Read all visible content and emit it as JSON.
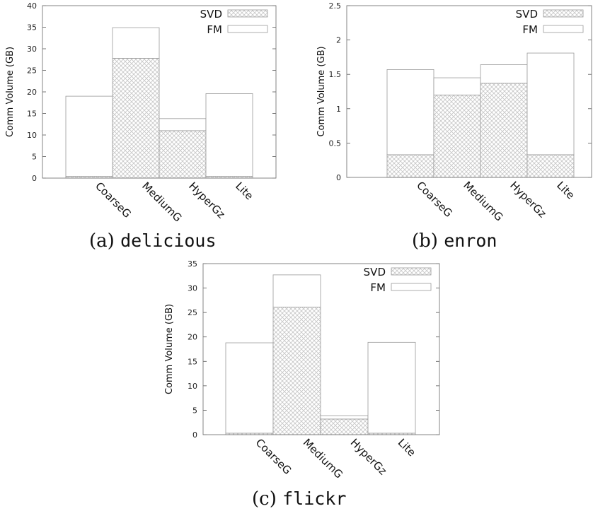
{
  "chart_data": [
    {
      "type": "bar",
      "stacked": true,
      "ylabel": "Comm Volume (GB)",
      "ylim": [
        0,
        40
      ],
      "yticks": [
        0,
        5,
        10,
        15,
        20,
        25,
        30,
        35,
        40
      ],
      "categories": [
        "CoarseG",
        "MediumG",
        "HyperGz",
        "Lite"
      ],
      "series": [
        {
          "name": "SVD",
          "values": [
            0.4,
            27.8,
            11.0,
            0.4
          ]
        },
        {
          "name": "FM",
          "values": [
            18.6,
            7.1,
            2.8,
            19.2
          ]
        }
      ],
      "legend": "top-right",
      "grid": false,
      "caption": {
        "letter": "(a)",
        "dataset": "delicious"
      }
    },
    {
      "type": "bar",
      "stacked": true,
      "ylabel": "Comm Volume (GB)",
      "ylim": [
        0,
        2.5
      ],
      "yticks": [
        0,
        0.5,
        1,
        1.5,
        2,
        2.5
      ],
      "categories": [
        "CoarseG",
        "MediumG",
        "HyperGz",
        "Lite"
      ],
      "series": [
        {
          "name": "SVD",
          "values": [
            0.33,
            1.2,
            1.37,
            0.33
          ]
        },
        {
          "name": "FM",
          "values": [
            1.24,
            0.25,
            0.27,
            1.48
          ]
        }
      ],
      "legend": "top-right",
      "grid": false,
      "caption": {
        "letter": "(b)",
        "dataset": "enron"
      }
    },
    {
      "type": "bar",
      "stacked": true,
      "ylabel": "Comm Volume (GB)",
      "ylim": [
        0,
        35
      ],
      "yticks": [
        0,
        5,
        10,
        15,
        20,
        25,
        30,
        35
      ],
      "categories": [
        "CoarseG",
        "MediumG",
        "HyperGz",
        "Lite"
      ],
      "series": [
        {
          "name": "SVD",
          "values": [
            0.3,
            26.1,
            3.2,
            0.3
          ]
        },
        {
          "name": "FM",
          "values": [
            18.5,
            6.6,
            0.7,
            18.6
          ]
        }
      ],
      "legend": "top-right",
      "grid": false,
      "caption": {
        "letter": "(c)",
        "dataset": "flickr"
      }
    }
  ]
}
